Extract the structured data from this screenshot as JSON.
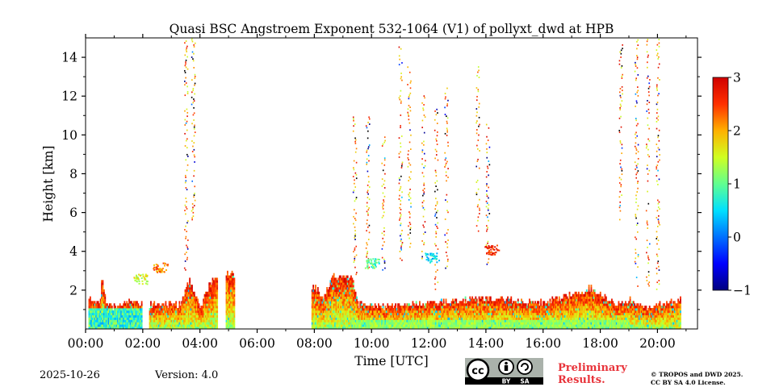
{
  "chart_data": {
    "type": "heatmap",
    "title": "Quasi BSC Angstroem Exponent 532-1064 (V1) of pollyxt_dwd at HPB",
    "xlabel": "Time [UTC]",
    "ylabel": "Height [km]",
    "x_unit": "hours UTC",
    "xlim": [
      0,
      21.4
    ],
    "ylim": [
      0,
      15
    ],
    "x_ticks": [
      0,
      2,
      4,
      6,
      8,
      10,
      12,
      14,
      16,
      18,
      20
    ],
    "x_tick_labels": [
      "00:00",
      "02:00",
      "04:00",
      "06:00",
      "08:00",
      "10:00",
      "12:00",
      "14:00",
      "16:00",
      "18:00",
      "20:00"
    ],
    "y_ticks": [
      2,
      4,
      6,
      8,
      10,
      12,
      14
    ],
    "y_tick_labels": [
      "2",
      "4",
      "6",
      "8",
      "10",
      "12",
      "14"
    ],
    "colorbar": {
      "range": [
        -1,
        3
      ],
      "ticks": [
        -1,
        0,
        1,
        2,
        3
      ],
      "tick_labels": [
        "−1",
        "0",
        "1",
        "2",
        "3"
      ],
      "colormap": "jet"
    },
    "boundary_layer_tops_km": [
      {
        "t": 0.1,
        "top": 1.45
      },
      {
        "t": 0.5,
        "top": 1.4
      },
      {
        "t": 0.55,
        "top": 2.9
      },
      {
        "t": 0.7,
        "top": 1.2
      },
      {
        "t": 1.0,
        "top": 1.1
      },
      {
        "t": 1.4,
        "top": 1.35
      },
      {
        "t": 1.98,
        "top": 1.25
      },
      {
        "t": 2.2,
        "top": 1.2
      },
      {
        "t": 2.8,
        "top": 1.25
      },
      {
        "t": 3.3,
        "top": 1.15
      },
      {
        "t": 3.6,
        "top": 2.5
      },
      {
        "t": 4.0,
        "top": 1.0
      },
      {
        "t": 4.3,
        "top": 2.2
      },
      {
        "t": 4.6,
        "top": 2.7
      },
      {
        "t": 4.9,
        "top": 2.9
      },
      {
        "t": 5.1,
        "top": 2.8
      },
      {
        "t": 8.0,
        "top": 2.1
      },
      {
        "t": 8.3,
        "top": 1.6
      },
      {
        "t": 8.6,
        "top": 2.6
      },
      {
        "t": 9.0,
        "top": 2.8
      },
      {
        "t": 9.3,
        "top": 2.6
      },
      {
        "t": 9.5,
        "top": 1.2
      },
      {
        "t": 10.5,
        "top": 1.1
      },
      {
        "t": 11.0,
        "top": 1.2
      },
      {
        "t": 12.0,
        "top": 1.3
      },
      {
        "t": 13.0,
        "top": 1.4
      },
      {
        "t": 14.0,
        "top": 1.5
      },
      {
        "t": 15.0,
        "top": 1.4
      },
      {
        "t": 16.0,
        "top": 1.3
      },
      {
        "t": 17.0,
        "top": 1.7
      },
      {
        "t": 17.6,
        "top": 2.05
      },
      {
        "t": 18.2,
        "top": 1.6
      },
      {
        "t": 18.5,
        "top": 1.1
      },
      {
        "t": 19.0,
        "top": 1.5
      },
      {
        "t": 19.5,
        "top": 1.0
      },
      {
        "t": 20.0,
        "top": 1.2
      },
      {
        "t": 20.8,
        "top": 1.4
      }
    ],
    "data_gaps_hours": [
      [
        5.2,
        7.9
      ]
    ],
    "cloud_columns": [
      {
        "t": 3.5,
        "base_km": 3.0,
        "top_km": 15.0
      },
      {
        "t": 3.75,
        "base_km": 5.5,
        "top_km": 15.0
      },
      {
        "t": 9.4,
        "base_km": 2.5,
        "top_km": 11.0
      },
      {
        "t": 9.85,
        "base_km": 2.5,
        "top_km": 11.0
      },
      {
        "t": 10.4,
        "base_km": 3.0,
        "top_km": 10.0
      },
      {
        "t": 11.0,
        "base_km": 3.5,
        "top_km": 14.5
      },
      {
        "t": 11.3,
        "base_km": 4.0,
        "top_km": 13.5
      },
      {
        "t": 11.8,
        "base_km": 3.5,
        "top_km": 12.0
      },
      {
        "t": 12.25,
        "base_km": 2.0,
        "top_km": 11.5
      },
      {
        "t": 12.6,
        "base_km": 3.0,
        "top_km": 12.5
      },
      {
        "t": 13.7,
        "base_km": 5.0,
        "top_km": 13.5
      },
      {
        "t": 14.05,
        "base_km": 3.2,
        "top_km": 10.5
      },
      {
        "t": 18.7,
        "base_km": 5.5,
        "top_km": 15.0
      },
      {
        "t": 19.25,
        "base_km": 1.8,
        "top_km": 15.0
      },
      {
        "t": 19.65,
        "base_km": 2.0,
        "top_km": 15.0
      },
      {
        "t": 20.0,
        "base_km": 2.0,
        "top_km": 15.0
      }
    ],
    "patches": [
      {
        "t": 12.1,
        "h": 3.7,
        "value": 0.5
      },
      {
        "t": 10.0,
        "h": 3.4,
        "value": 0.9
      },
      {
        "t": 14.2,
        "h": 4.1,
        "value": 2.5
      },
      {
        "t": 1.9,
        "h": 2.6,
        "value": 1.5
      },
      {
        "t": 2.6,
        "h": 3.2,
        "value": 2.2
      }
    ]
  },
  "footer": {
    "date": "2025-10-26",
    "version": "Version: 4.0",
    "preliminary_line1": "Preliminary",
    "preliminary_line2": "Results.",
    "copyright_line1": "© TROPOS and DWD 2025.",
    "copyright_line2": "CC BY SA 4.0 License.",
    "cc_badge": {
      "label_by": "BY",
      "label_sa": "SA",
      "icon": "cc-by-sa-icon"
    }
  },
  "colors": {
    "jet": [
      "#00007f",
      "#0000ff",
      "#007fff",
      "#00ffff",
      "#7fff7f",
      "#ffff00",
      "#ff7f00",
      "#ff0000",
      "#7f0000"
    ]
  }
}
